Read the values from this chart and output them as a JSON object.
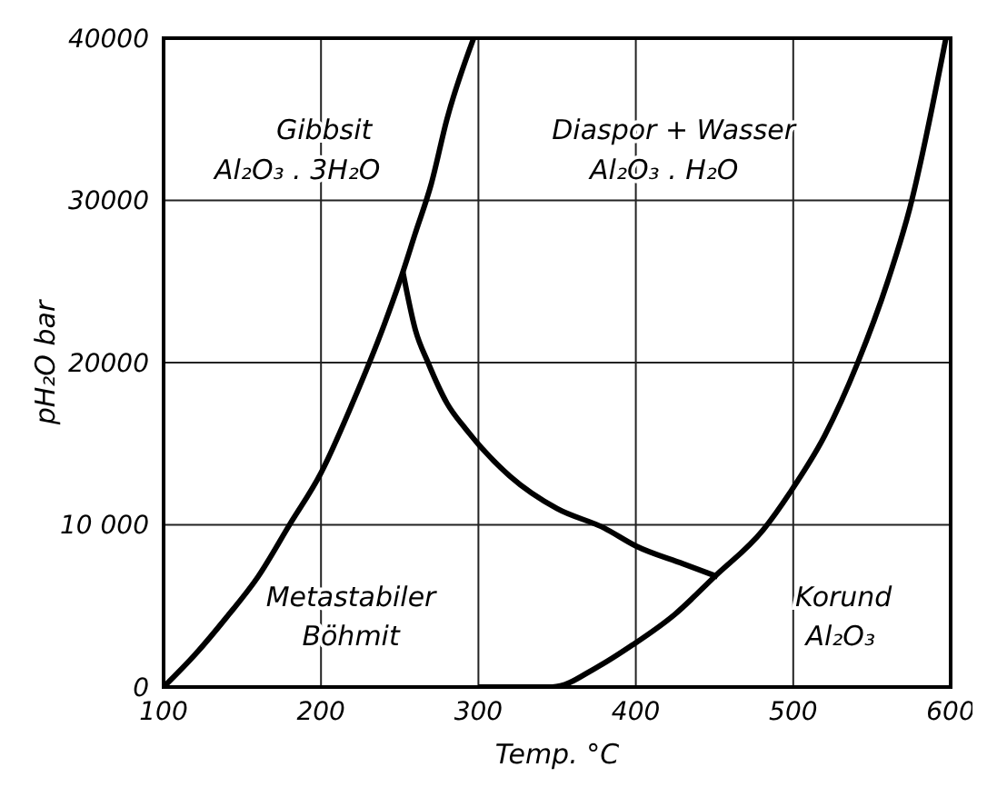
{
  "chart_data": {
    "type": "line",
    "xlabel": "Temp. °C",
    "ylabel": "pH₂O bar",
    "xlim": [
      100,
      600
    ],
    "xticks": [
      100,
      200,
      300,
      400,
      500,
      600
    ],
    "ylim": [
      0,
      40000
    ],
    "yticks": [
      0,
      {
        "value": 10000,
        "label": "10 000"
      },
      20000,
      30000,
      40000
    ],
    "grid": true,
    "legend": false,
    "marker": "none",
    "line_style": "solid",
    "series": [
      {
        "color": "#000000",
        "x": [
          100,
          120,
          140,
          160,
          180,
          200,
          220,
          240,
          250,
          260,
          270,
          280,
          297
        ],
        "values": [
          0,
          2000,
          4300,
          6800,
          10000,
          13200,
          17500,
          22300,
          25000,
          28000,
          31000,
          35000,
          40000
        ]
      },
      {
        "color": "#000000",
        "x": [
          252,
          260,
          268,
          280,
          292,
          320,
          350,
          380,
          400,
          430,
          452
        ],
        "values": [
          25600,
          22000,
          20000,
          17500,
          15900,
          13000,
          11000,
          9800,
          8700,
          7600,
          6800
        ]
      },
      {
        "color": "#000000",
        "x": [
          300,
          347,
          375,
          398,
          425,
          450,
          481,
          498,
          520,
          541,
          560,
          574,
          597
        ],
        "values": [
          0,
          0,
          1200,
          2600,
          4500,
          6800,
          9700,
          12000,
          15500,
          20000,
          25000,
          29500,
          40000
        ]
      }
    ],
    "annotations": [
      "Gibbsit",
      "Al₂O₃ . 3H₂O",
      "Diaspor + Wasser",
      "Al₂O₃ . H₂O",
      "Metastabiler",
      "Böhmit",
      "Korund",
      "Al₂O₃"
    ]
  }
}
